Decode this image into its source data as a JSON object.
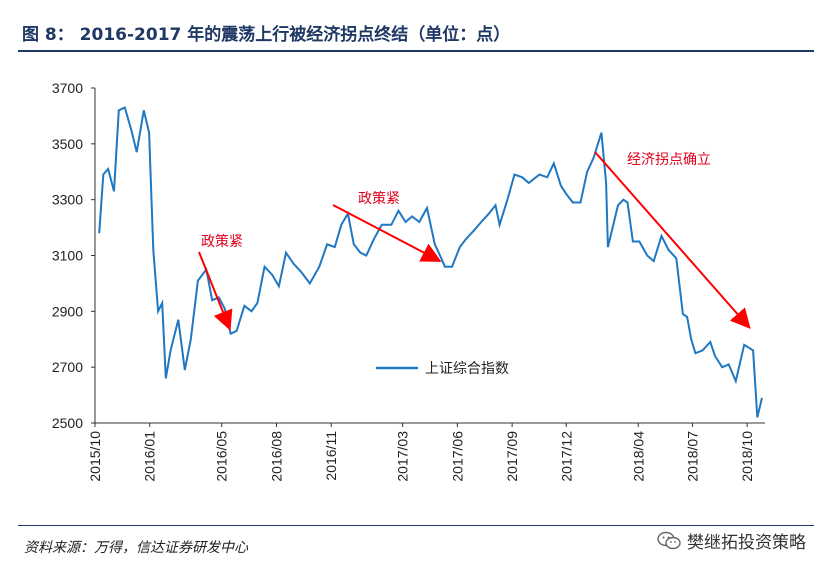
{
  "header": {
    "title": "图 8：  2016-2017 年的震荡上行被经济拐点终结（单位：点）"
  },
  "footer": {
    "source": "资料来源：万得，信达证券研发中心",
    "watermark": "樊继拓投资策略"
  },
  "colors": {
    "series": "#1f78c1",
    "annotation": "#ff0000",
    "rule": "#1f3864"
  },
  "chart_data": {
    "type": "line",
    "ylim": [
      2500,
      3700
    ],
    "yticks": [
      "3700",
      "3500",
      "3300",
      "3100",
      "2900",
      "2700",
      "2500"
    ],
    "xtick_labels": [
      "2015/10",
      "2016/01",
      "2016/05",
      "2016/08",
      "2016/11",
      "2017/03",
      "2017/06",
      "2017/09",
      "2017/12",
      "2018/04",
      "2018/07",
      "2018/10"
    ],
    "legend": "上证综合指数",
    "legend_position": "middle-right",
    "grid": false,
    "series": [
      {
        "name": "上证综合指数",
        "x": [
          "2015/10/08",
          "2015/10/15",
          "2015/10/23",
          "2015/11/02",
          "2015/11/10",
          "2015/11/20",
          "2015/12/01",
          "2015/12/10",
          "2015/12/22",
          "2015/12/31",
          "2016/01/07",
          "2016/01/15",
          "2016/01/22",
          "2016/01/28",
          "2016/02/05",
          "2016/02/18",
          "2016/02/29",
          "2016/03/10",
          "2016/03/22",
          "2016/04/05",
          "2016/04/15",
          "2016/04/26",
          "2016/05/06",
          "2016/05/16",
          "2016/05/26",
          "2016/06/08",
          "2016/06/20",
          "2016/06/30",
          "2016/07/12",
          "2016/07/25",
          "2016/08/05",
          "2016/08/17",
          "2016/08/30",
          "2016/09/12",
          "2016/09/26",
          "2016/10/12",
          "2016/10/25",
          "2016/11/07",
          "2016/11/18",
          "2016/11/29",
          "2016/12/09",
          "2016/12/20",
          "2016/12/30",
          "2017/01/12",
          "2017/01/25",
          "2017/02/10",
          "2017/02/22",
          "2017/03/06",
          "2017/03/17",
          "2017/03/29",
          "2017/04/11",
          "2017/04/24",
          "2017/05/05",
          "2017/05/11",
          "2017/05/23",
          "2017/06/05",
          "2017/06/16",
          "2017/06/29",
          "2017/07/11",
          "2017/07/24",
          "2017/08/04",
          "2017/08/11",
          "2017/08/24",
          "2017/09/05",
          "2017/09/18",
          "2017/09/29",
          "2017/10/17",
          "2017/10/30",
          "2017/11/10",
          "2017/11/22",
          "2017/12/01",
          "2017/12/12",
          "2017/12/25",
          "2018/01/05",
          "2018/01/16",
          "2018/01/29",
          "2018/02/06",
          "2018/02/09",
          "2018/02/26",
          "2018/03/07",
          "2018/03/14",
          "2018/03/23",
          "2018/04/03",
          "2018/04/16",
          "2018/04/27",
          "2018/05/10",
          "2018/05/22",
          "2018/06/04",
          "2018/06/15",
          "2018/06/22",
          "2018/06/29",
          "2018/07/06",
          "2018/07/18",
          "2018/07/31",
          "2018/08/08",
          "2018/08/20",
          "2018/08/31",
          "2018/09/12",
          "2018/09/26",
          "2018/10/11",
          "2018/10/18",
          "2018/10/26"
        ],
        "values": [
          3180,
          3390,
          3410,
          3330,
          3620,
          3630,
          3550,
          3470,
          3620,
          3540,
          3120,
          2900,
          2930,
          2660,
          2760,
          2870,
          2690,
          2800,
          3010,
          3050,
          2940,
          2950,
          2910,
          2820,
          2830,
          2920,
          2900,
          2930,
          3060,
          3030,
          2990,
          3110,
          3070,
          3040,
          3000,
          3060,
          3140,
          3130,
          3210,
          3250,
          3140,
          3110,
          3100,
          3160,
          3210,
          3210,
          3260,
          3220,
          3240,
          3220,
          3270,
          3140,
          3090,
          3060,
          3060,
          3130,
          3160,
          3190,
          3220,
          3250,
          3280,
          3210,
          3300,
          3390,
          3380,
          3360,
          3390,
          3380,
          3430,
          3350,
          3320,
          3290,
          3290,
          3400,
          3450,
          3540,
          3360,
          3130,
          3280,
          3300,
          3290,
          3150,
          3150,
          3100,
          3080,
          3170,
          3120,
          3090,
          2890,
          2880,
          2800,
          2750,
          2760,
          2790,
          2740,
          2700,
          2710,
          2650,
          2780,
          2760,
          2520,
          2590
        ]
      }
    ],
    "annotations": [
      "政策紧",
      "政策紧",
      "经济拐点确立"
    ]
  }
}
